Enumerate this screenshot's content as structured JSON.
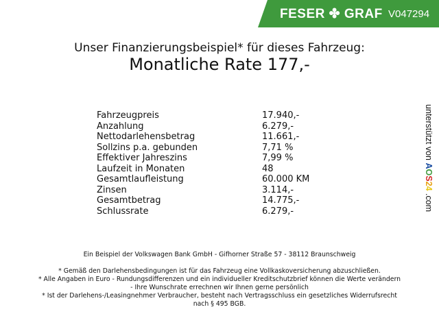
{
  "header": {
    "brand": "FESER",
    "brand2": "GRAF",
    "vehicle_id": "V047294",
    "brand_color": "#3f9a3d"
  },
  "title": "Unser Finanzierungsbeispiel* für dieses Fahrzeug:",
  "rate": "Monatliche Rate 177,-",
  "rows": [
    {
      "label": "Fahrzeugpreis",
      "value": "17.940,-"
    },
    {
      "label": "Anzahlung",
      "value": "6.279,-"
    },
    {
      "label": "Nettodarlehensbetrag",
      "value": "11.661,-"
    },
    {
      "label": "Sollzins p.a. gebunden",
      "value": "7,71 %"
    },
    {
      "label": "Effektiver Jahreszins",
      "value": "7,99 %"
    },
    {
      "label": "Laufzeit in Monaten",
      "value": "48"
    },
    {
      "label": "Gesamtlaufleistung",
      "value": "60.000 KM"
    },
    {
      "label": "Zinsen",
      "value": "3.114,-"
    },
    {
      "label": "Gesamtbetrag",
      "value": "14.775,-"
    },
    {
      "label": "Schlussrate",
      "value": "6.279,-"
    }
  ],
  "side": {
    "text": "unterstützt von",
    "logo": "AOS24",
    "suffix": ".com"
  },
  "footer": {
    "bank": "Ein Beispiel der Volkswagen Bank GmbH - Gifhorner Straße 57 - 38112 Braunschweig",
    "note1": "* Gemäß den Darlehensbedingungen ist für das Fahrzeug eine Vollkaskoversicherung abzuschließen.",
    "note2a": "* Alle Angaben in Euro - Rundungsdifferenzen und ein individueller Kreditschutzbrief können die Werte verändern",
    "note2b": "- Ihre Wunschrate errechnen wir Ihnen gerne persönlich",
    "note3a": "* Ist der Darlehens-/Leasingnehmer Verbraucher, besteht nach Vertragsschluss ein gesetzliches Widerrufsrecht",
    "note3b": "nach § 495 BGB."
  }
}
